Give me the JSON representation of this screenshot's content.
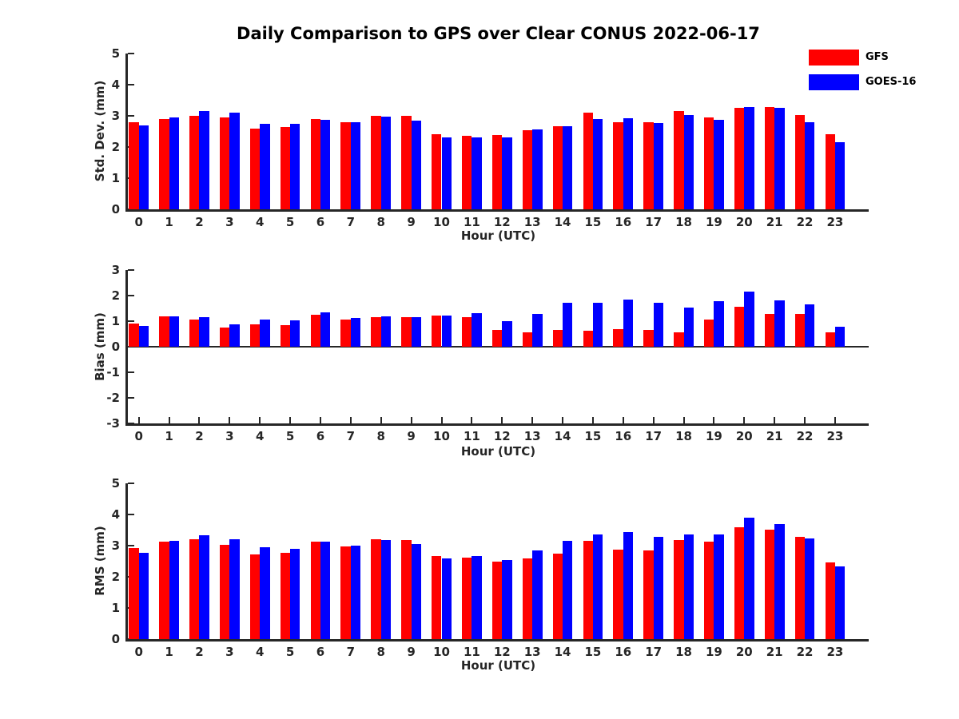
{
  "title": "Daily Comparison to GPS over Clear CONUS 2022-06-17",
  "legend": {
    "position": "top-right",
    "items": [
      {
        "label": "GFS",
        "color": "#ff0000"
      },
      {
        "label": "GOES-16",
        "color": "#0000ff"
      }
    ]
  },
  "chart_data": [
    {
      "type": "bar",
      "panel": "std-dev",
      "title": "",
      "ylabel": "Std. Dev. (mm)",
      "xlabel": "Hour (UTC)",
      "categories": [
        "0",
        "1",
        "2",
        "3",
        "4",
        "5",
        "6",
        "7",
        "8",
        "9",
        "10",
        "11",
        "12",
        "13",
        "14",
        "15",
        "16",
        "17",
        "18",
        "19",
        "20",
        "21",
        "22",
        "23"
      ],
      "ylim": [
        0,
        5
      ],
      "yticks": [
        0,
        1,
        2,
        3,
        4,
        5
      ],
      "grid": false,
      "series": [
        {
          "name": "GFS",
          "color": "#ff0000",
          "values": [
            2.8,
            2.9,
            3.0,
            2.95,
            2.6,
            2.65,
            2.9,
            2.8,
            3.0,
            3.0,
            2.4,
            2.35,
            2.38,
            2.55,
            2.66,
            3.1,
            2.8,
            2.8,
            3.16,
            2.95,
            3.25,
            3.28,
            3.02,
            2.42
          ]
        },
        {
          "name": "GOES-16",
          "color": "#0000ff",
          "values": [
            2.68,
            2.95,
            3.15,
            3.1,
            2.74,
            2.75,
            2.87,
            2.8,
            2.97,
            2.85,
            2.32,
            2.32,
            2.32,
            2.57,
            2.66,
            2.9,
            2.92,
            2.78,
            3.02,
            2.87,
            3.27,
            3.25,
            2.8,
            2.16
          ]
        }
      ]
    },
    {
      "type": "bar",
      "panel": "bias",
      "title": "",
      "ylabel": "Bias (mm)",
      "xlabel": "Hour (UTC)",
      "categories": [
        "0",
        "1",
        "2",
        "3",
        "4",
        "5",
        "6",
        "7",
        "8",
        "9",
        "10",
        "11",
        "12",
        "13",
        "14",
        "15",
        "16",
        "17",
        "18",
        "19",
        "20",
        "21",
        "22",
        "23"
      ],
      "ylim": [
        -3,
        3
      ],
      "yticks": [
        3,
        2,
        1,
        0,
        -1,
        -2,
        -3
      ],
      "grid": false,
      "series": [
        {
          "name": "GFS",
          "color": "#ff0000",
          "values": [
            0.9,
            1.2,
            1.07,
            0.75,
            0.88,
            0.85,
            1.25,
            1.07,
            1.15,
            1.15,
            1.22,
            1.16,
            0.65,
            0.55,
            0.66,
            0.62,
            0.69,
            0.65,
            0.55,
            1.07,
            1.57,
            1.28,
            1.27,
            0.57
          ]
        },
        {
          "name": "GOES-16",
          "color": "#0000ff",
          "values": [
            0.8,
            1.2,
            1.15,
            0.88,
            1.07,
            1.02,
            1.33,
            1.12,
            1.2,
            1.15,
            1.22,
            1.31,
            1.0,
            1.28,
            1.72,
            1.72,
            1.85,
            1.72,
            1.54,
            1.78,
            2.15,
            1.8,
            1.66,
            0.78
          ]
        }
      ]
    },
    {
      "type": "bar",
      "panel": "rms",
      "title": "",
      "ylabel": "RMS (mm)",
      "xlabel": "Hour (UTC)",
      "categories": [
        "0",
        "1",
        "2",
        "3",
        "4",
        "5",
        "6",
        "7",
        "8",
        "9",
        "10",
        "11",
        "12",
        "13",
        "14",
        "15",
        "16",
        "17",
        "18",
        "19",
        "20",
        "21",
        "22",
        "23"
      ],
      "ylim": [
        0,
        5
      ],
      "yticks": [
        0,
        1,
        2,
        3,
        4,
        5
      ],
      "grid": false,
      "series": [
        {
          "name": "GFS",
          "color": "#ff0000",
          "values": [
            2.93,
            3.13,
            3.2,
            3.03,
            2.73,
            2.78,
            3.13,
            2.97,
            3.2,
            3.18,
            2.67,
            2.62,
            2.5,
            2.6,
            2.75,
            3.16,
            2.86,
            2.84,
            3.18,
            3.12,
            3.59,
            3.52,
            3.27,
            2.47
          ]
        },
        {
          "name": "GOES-16",
          "color": "#0000ff",
          "values": [
            2.77,
            3.15,
            3.34,
            3.2,
            2.95,
            2.9,
            3.13,
            3.0,
            3.18,
            3.05,
            2.6,
            2.67,
            2.54,
            2.85,
            3.16,
            3.36,
            3.44,
            3.27,
            3.36,
            3.36,
            3.89,
            3.7,
            3.24,
            2.33
          ]
        }
      ]
    }
  ]
}
